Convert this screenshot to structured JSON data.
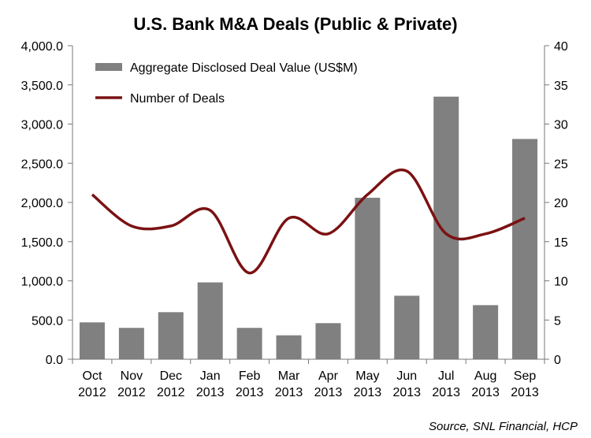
{
  "chart_data": {
    "type": "bar",
    "title": "U.S. Bank M&A Deals (Public & Private)",
    "source": "Source, SNL Financial, HCP",
    "categories": [
      [
        "Oct",
        "2012"
      ],
      [
        "Nov",
        "2012"
      ],
      [
        "Dec",
        "2012"
      ],
      [
        "Jan",
        "2013"
      ],
      [
        "Feb",
        "2013"
      ],
      [
        "Mar",
        "2013"
      ],
      [
        "Apr",
        "2013"
      ],
      [
        "May",
        "2013"
      ],
      [
        "Jun",
        "2013"
      ],
      [
        "Jul",
        "2013"
      ],
      [
        "Aug",
        "2013"
      ],
      [
        "Sep",
        "2013"
      ]
    ],
    "series": [
      {
        "name": "Aggregate Disclosed Deal Value (US$M)",
        "type": "bar",
        "axis": "left",
        "color": "#808080",
        "values": [
          470,
          400,
          600,
          980,
          400,
          305,
          460,
          2060,
          810,
          3350,
          690,
          2810
        ]
      },
      {
        "name": "Number of Deals",
        "type": "line",
        "axis": "right",
        "color": "#7b1113",
        "values": [
          21,
          17,
          17,
          19,
          11,
          18,
          16,
          21,
          24,
          16,
          16,
          18
        ]
      }
    ],
    "y_left": {
      "range": [
        0,
        4000
      ],
      "ticks": [
        "0.0",
        "500.0",
        "1,000.0",
        "1,500.0",
        "2,000.0",
        "2,500.0",
        "3,000.0",
        "3,500.0",
        "4,000.0"
      ]
    },
    "y_right": {
      "range": [
        0,
        40
      ],
      "ticks": [
        "0",
        "5",
        "10",
        "15",
        "20",
        "25",
        "30",
        "35",
        "40"
      ]
    },
    "grid": false,
    "legend_position": "top-left (inside plot)"
  }
}
